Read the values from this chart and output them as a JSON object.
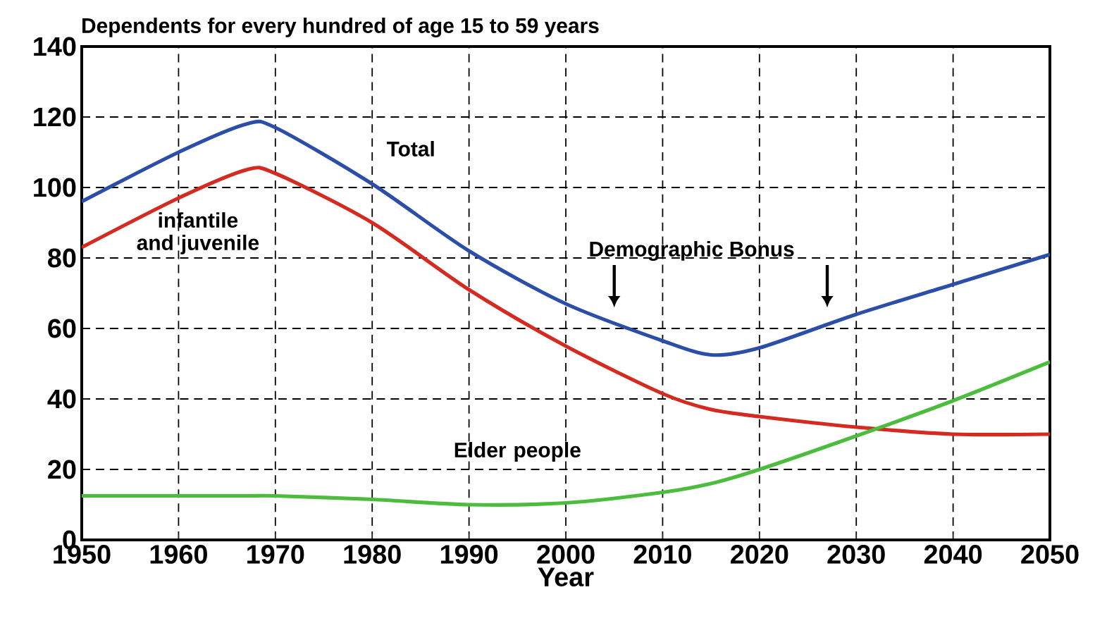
{
  "chart_data": {
    "type": "line",
    "title": "Dependents for every hundred of age 15 to 59 years",
    "xlabel": "Year",
    "x": [
      1950,
      1960,
      1967,
      1970,
      1980,
      1990,
      2000,
      2010,
      2015,
      2020,
      2030,
      2040,
      2050
    ],
    "series": [
      {
        "name": "Total",
        "color": "#2b4fa8",
        "values": [
          96,
          110,
          118,
          117,
          101,
          82,
          67,
          56.5,
          52.5,
          54.5,
          64,
          72.5,
          81
        ]
      },
      {
        "name": "infantile and juvenile",
        "color": "#d42a20",
        "values": [
          83,
          97,
          105,
          104,
          90,
          71,
          55,
          41.5,
          37,
          35,
          32,
          30,
          30
        ]
      },
      {
        "name": "Elder people",
        "color": "#4cbc3c",
        "values": [
          12.5,
          12.5,
          12.5,
          12.5,
          11.5,
          10,
          10.5,
          13.5,
          16,
          20,
          29.5,
          39.5,
          50.5
        ]
      }
    ],
    "annotations": [
      "Demographic Bonus"
    ],
    "xlim": [
      1950,
      2050
    ],
    "ylim": [
      0,
      140
    ],
    "xticks": [
      1950,
      1960,
      1970,
      1980,
      1990,
      2000,
      2010,
      2020,
      2030,
      2040,
      2050
    ],
    "yticks": [
      0,
      20,
      40,
      60,
      80,
      100,
      120,
      140
    ],
    "grid": true,
    "line_style": "solid"
  }
}
